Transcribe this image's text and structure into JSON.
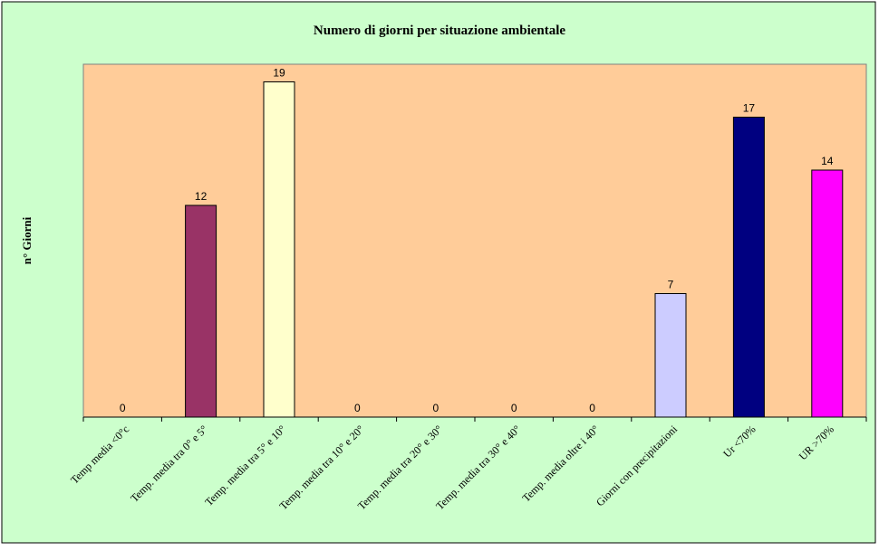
{
  "chart_data": {
    "type": "bar",
    "title": "Numero di giorni per situazione ambientale",
    "ylabel": "n° Giorni",
    "xlabel": "",
    "ylim": [
      0,
      20
    ],
    "grid": false,
    "legend": "none",
    "categories": [
      "Temp media <0°c",
      "Temp. media tra 0° e 5°",
      "Temp. media tra 5° e 10°",
      "Temp. media tra 10° e 20°",
      "Temp. media tra 20° e 30°",
      "Temp. media tra 30° e 40°",
      "Temp. media oltre i 40°",
      "Giorni con precipitazioni",
      "Ur  <70%",
      "UR >70%"
    ],
    "values": [
      0,
      12,
      19,
      0,
      0,
      0,
      0,
      7,
      17,
      14
    ],
    "bar_colors": [
      "#993366",
      "#993366",
      "#FFFFCC",
      "#993366",
      "#993366",
      "#993366",
      "#993366",
      "#CCCCFF",
      "#000080",
      "#FF00FF"
    ],
    "data_labels": [
      "0",
      "12",
      "19",
      "0",
      "0",
      "0",
      "0",
      "7",
      "17",
      "14"
    ]
  },
  "colors": {
    "outer_background": "#CCFFCC",
    "plot_background": "#FFCC99"
  }
}
